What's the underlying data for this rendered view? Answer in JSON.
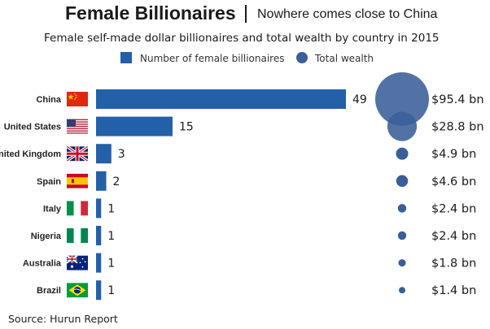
{
  "header": {
    "title": "Female Billionaires",
    "subtitle": "Nowhere comes close to China"
  },
  "description": "Female self-made dollar billionaires and total wealth by country in 2015",
  "source": "Source: Hurun Report",
  "colors": {
    "bar": "#2460a7",
    "bubble": "#3a5e98",
    "bubble_overlap": "#2c4f8a"
  },
  "chart_data": {
    "type": "bar",
    "orientation": "horizontal",
    "title": "Female self-made dollar billionaires and total wealth by country in 2015",
    "categories": [
      "China",
      "United States",
      "United Kingdom",
      "Spain",
      "Italy",
      "Nigeria",
      "Australia",
      "Brazil"
    ],
    "flags": [
      "china-flag-icon",
      "usa-flag-icon",
      "uk-flag-icon",
      "spain-flag-icon",
      "italy-flag-icon",
      "nigeria-flag-icon",
      "australia-flag-icon",
      "brazil-flag-icon"
    ],
    "series": [
      {
        "name": "Number of female billionaires",
        "kind": "bar",
        "values": [
          49,
          15,
          3,
          2,
          1,
          1,
          1,
          1
        ]
      },
      {
        "name": "Total wealth",
        "kind": "bubble",
        "values": [
          95.4,
          28.8,
          4.9,
          4.6,
          2.4,
          2.4,
          1.8,
          1.4
        ]
      }
    ],
    "value_labels": [
      "49",
      "15",
      "3",
      "2",
      "1",
      "1",
      "1",
      "1"
    ],
    "wealth_labels": [
      "$95.4 bn",
      "$28.8 bn",
      "$4.9 bn",
      "$4.6 bn",
      "$2.4 bn",
      "$2.4 bn",
      "$1.8 bn",
      "$1.4 bn"
    ],
    "legend": [
      {
        "label": "Number of female billionaires",
        "marker": "square"
      },
      {
        "label": "Total wealth",
        "marker": "circle"
      }
    ],
    "legend_position": "top",
    "grid": false
  }
}
